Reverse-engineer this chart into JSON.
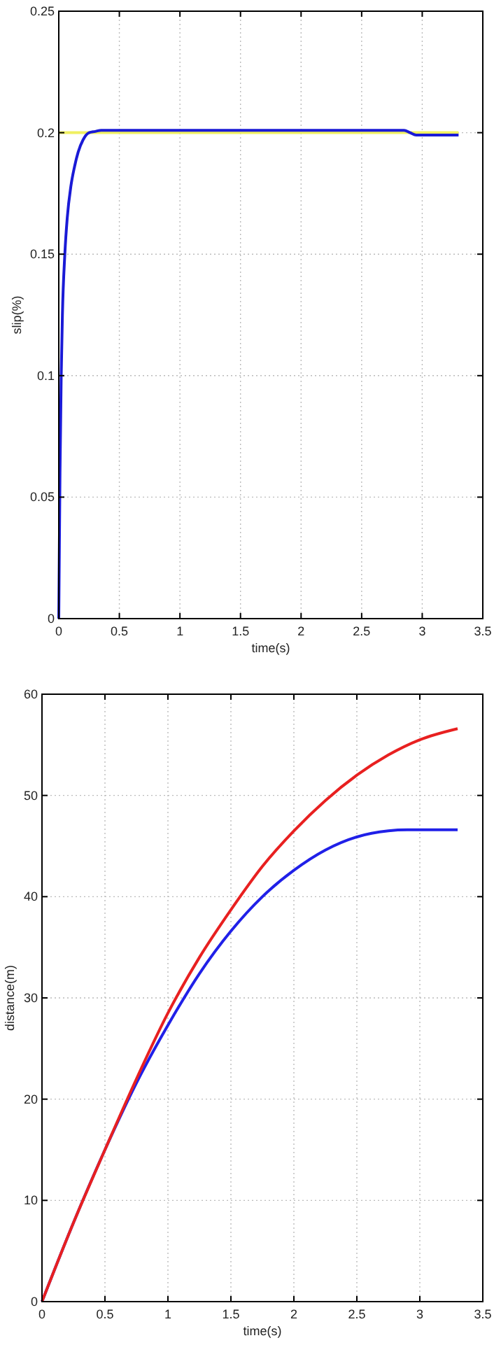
{
  "chart_data": [
    {
      "type": "line",
      "xlabel": "time(s)",
      "ylabel": "slip(%)",
      "xlim": [
        0,
        3.5
      ],
      "ylim": [
        0,
        0.25
      ],
      "xticks": [
        0,
        0.5,
        1,
        1.5,
        2,
        2.5,
        3,
        3.5
      ],
      "yticks": [
        0,
        0.05,
        0.1,
        0.15,
        0.2,
        0.25
      ],
      "grid": true,
      "marker": "none",
      "line_style": "solid",
      "series": [
        {
          "color": "#f0f060",
          "x": [
            0,
            3.3
          ],
          "values": [
            0.2,
            0.2
          ]
        },
        {
          "color": "#1a1ad6",
          "x": [
            0,
            0.005,
            0.01,
            0.02,
            0.03,
            0.05,
            0.07,
            0.1,
            0.13,
            0.16,
            0.2,
            0.25,
            0.3,
            0.35,
            0.5,
            1,
            2,
            2.8,
            2.85,
            2.9,
            2.95,
            3,
            3.3
          ],
          "values": [
            0,
            0.03,
            0.06,
            0.1,
            0.125,
            0.15,
            0.165,
            0.178,
            0.186,
            0.192,
            0.197,
            0.2,
            0.2005,
            0.201,
            0.201,
            0.201,
            0.201,
            0.201,
            0.201,
            0.2,
            0.199,
            0.199,
            0.199
          ]
        }
      ]
    },
    {
      "type": "line",
      "xlabel": "time(s)",
      "ylabel": "distance(m)",
      "xlim": [
        0,
        3.5
      ],
      "ylim": [
        0,
        60
      ],
      "xticks": [
        0,
        0.5,
        1,
        1.5,
        2,
        2.5,
        3,
        3.5
      ],
      "yticks": [
        0,
        10,
        20,
        30,
        40,
        50,
        60
      ],
      "grid": true,
      "marker": "none",
      "line_style": "solid",
      "series": [
        {
          "color": "#2020e8",
          "x": [
            0,
            0.25,
            0.5,
            0.75,
            1,
            1.25,
            1.5,
            1.75,
            2,
            2.25,
            2.5,
            2.75,
            2.9,
            3.3
          ],
          "values": [
            0,
            7.8,
            15,
            21.6,
            27.3,
            32.4,
            36.6,
            40,
            42.6,
            44.6,
            45.9,
            46.5,
            46.6,
            46.6
          ]
        },
        {
          "color": "#e82020",
          "x": [
            0,
            0.25,
            0.5,
            0.75,
            1,
            1.25,
            1.5,
            1.75,
            2,
            2.25,
            2.5,
            2.75,
            3,
            3.3
          ],
          "values": [
            0,
            7.8,
            15,
            22,
            28.5,
            34,
            38.7,
            43,
            46.5,
            49.5,
            52,
            54,
            55.5,
            56.6
          ]
        }
      ]
    }
  ]
}
